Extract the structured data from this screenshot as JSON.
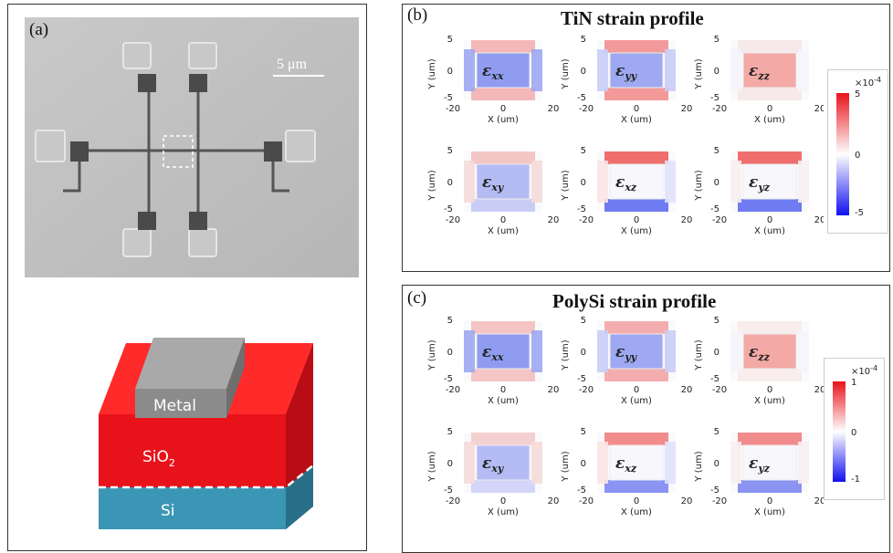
{
  "panel_a": {
    "label": "(a)",
    "scale_bar": "5 μm",
    "layers": {
      "metal": "Metal",
      "oxide_base": "SiO",
      "oxide_sub": "2",
      "substrate": "Si"
    },
    "colors": {
      "metal": "#8c8c8c",
      "oxide": "#e8121b",
      "substrate": "#3b96b5"
    }
  },
  "panel_b": {
    "label": "(b)",
    "title": "TiN strain profile",
    "colorbar": {
      "exponent": "×10",
      "exponent_power": "-4",
      "max": "5",
      "mid": "0",
      "min": "-5"
    }
  },
  "panel_c": {
    "label": "(c)",
    "title": "PolySi strain profile",
    "colorbar": {
      "exponent": "×10",
      "exponent_power": "-4",
      "max": "1",
      "mid": "0",
      "min": "-1"
    }
  },
  "subplot_axes": {
    "xlabel": "X (um)",
    "ylabel": "Y (um)",
    "xticks": [
      "-20",
      "0",
      "20"
    ],
    "yticks": [
      "5",
      "0",
      "-5"
    ]
  },
  "components": [
    {
      "base": "ε",
      "sub": "xx"
    },
    {
      "base": "ε",
      "sub": "yy"
    },
    {
      "base": "ε",
      "sub": "zz"
    },
    {
      "base": "ε",
      "sub": "xy"
    },
    {
      "base": "ε",
      "sub": "xz"
    },
    {
      "base": "ε",
      "sub": "yz"
    }
  ]
}
